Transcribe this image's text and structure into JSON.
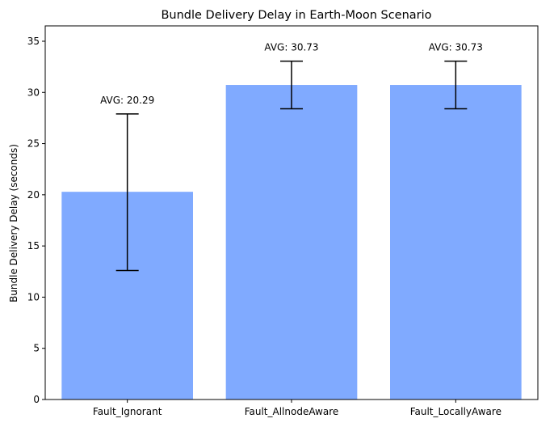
{
  "chart_data": {
    "type": "bar",
    "title": "Bundle Delivery Delay in Earth-Moon Scenario",
    "xlabel": "",
    "ylabel": "Bundle Delivery Delay (seconds)",
    "categories": [
      "Fault_Ignorant",
      "Fault_AllnodeAware",
      "Fault_LocallyAware"
    ],
    "values": [
      20.29,
      30.73,
      30.73
    ],
    "error_low": [
      12.6,
      28.4,
      28.4
    ],
    "error_high": [
      27.9,
      33.05,
      33.05
    ],
    "data_labels": [
      "AVG: 20.29",
      "AVG: 30.73",
      "AVG: 30.73"
    ],
    "ylim": [
      0,
      36.5
    ],
    "yticks": [
      0,
      5,
      10,
      15,
      20,
      25,
      30,
      35
    ],
    "grid": false,
    "bar_color": "#80aaff"
  }
}
